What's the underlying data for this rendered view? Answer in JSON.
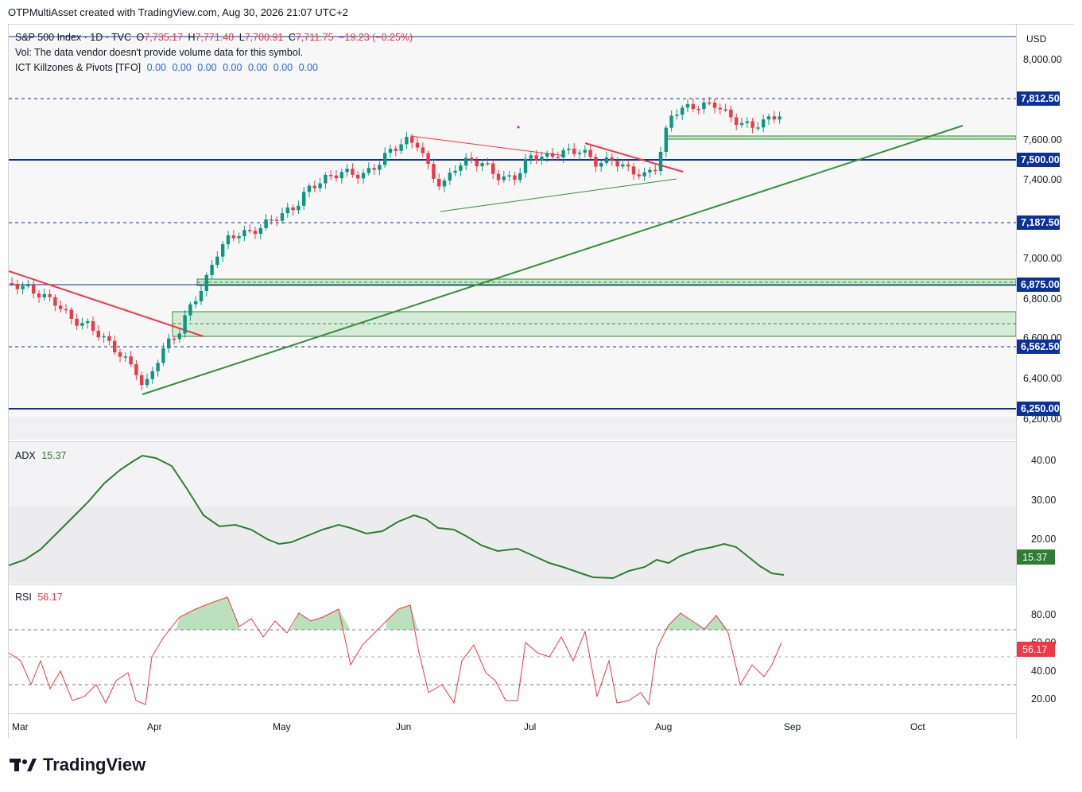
{
  "header": {
    "caption": "OTPMultiAsset created with TradingView.com, Aug 30, 2026 21:07 UTC+2"
  },
  "symbol": {
    "name": "S&P 500 Index · 1D · TVC",
    "open_label": "O",
    "open": "7,735.17",
    "high_label": "H",
    "high": "7,771.48",
    "low_label": "L",
    "low": "7,700.91",
    "close_label": "C",
    "close": "7,711.75",
    "change": "−19.23 (−0.25%)",
    "currency": "USD"
  },
  "volume_note": "Vol: The data vendor doesn't provide volume data for this symbol.",
  "indicator_killzones": {
    "name": "ICT Killzones & Pivots [TFO]",
    "values": [
      "0.00",
      "0.00",
      "0.00",
      "0.00",
      "0.00",
      "0.00",
      "0.00"
    ]
  },
  "price_axis": {
    "ticks": [
      "8,000.00",
      "7,600.00",
      "7,400.00",
      "7,000.00",
      "6,800.00",
      "6,600.00",
      "6,400.00",
      "6,200.00"
    ],
    "levels": [
      {
        "label": "7,812.50",
        "style": "dashed"
      },
      {
        "label": "7,500.00",
        "style": "solid"
      },
      {
        "label": "7,187.50",
        "style": "dashed"
      },
      {
        "label": "6,875.00",
        "style": "solid"
      },
      {
        "label": "6,562.50",
        "style": "dashed"
      },
      {
        "label": "6,250.00",
        "style": "solid"
      }
    ],
    "level_color": "#0c3299"
  },
  "adx": {
    "name": "ADX",
    "value": "15.37",
    "ticks": [
      "40.00",
      "30.00",
      "20.00"
    ],
    "color": "#2e7d32"
  },
  "rsi": {
    "name": "RSI",
    "value": "56.17",
    "ticks": [
      "80.00",
      "60.00",
      "40.00",
      "20.00"
    ],
    "color": "#f23645"
  },
  "time_axis": [
    "Mar",
    "Apr",
    "May",
    "Jun",
    "Jul",
    "Aug",
    "Sep",
    "Oct"
  ],
  "colors": {
    "up": "#089981",
    "down": "#f23645",
    "trend_green": "#388e3c",
    "trend_red": "#f23645"
  },
  "brand": "TradingView"
}
